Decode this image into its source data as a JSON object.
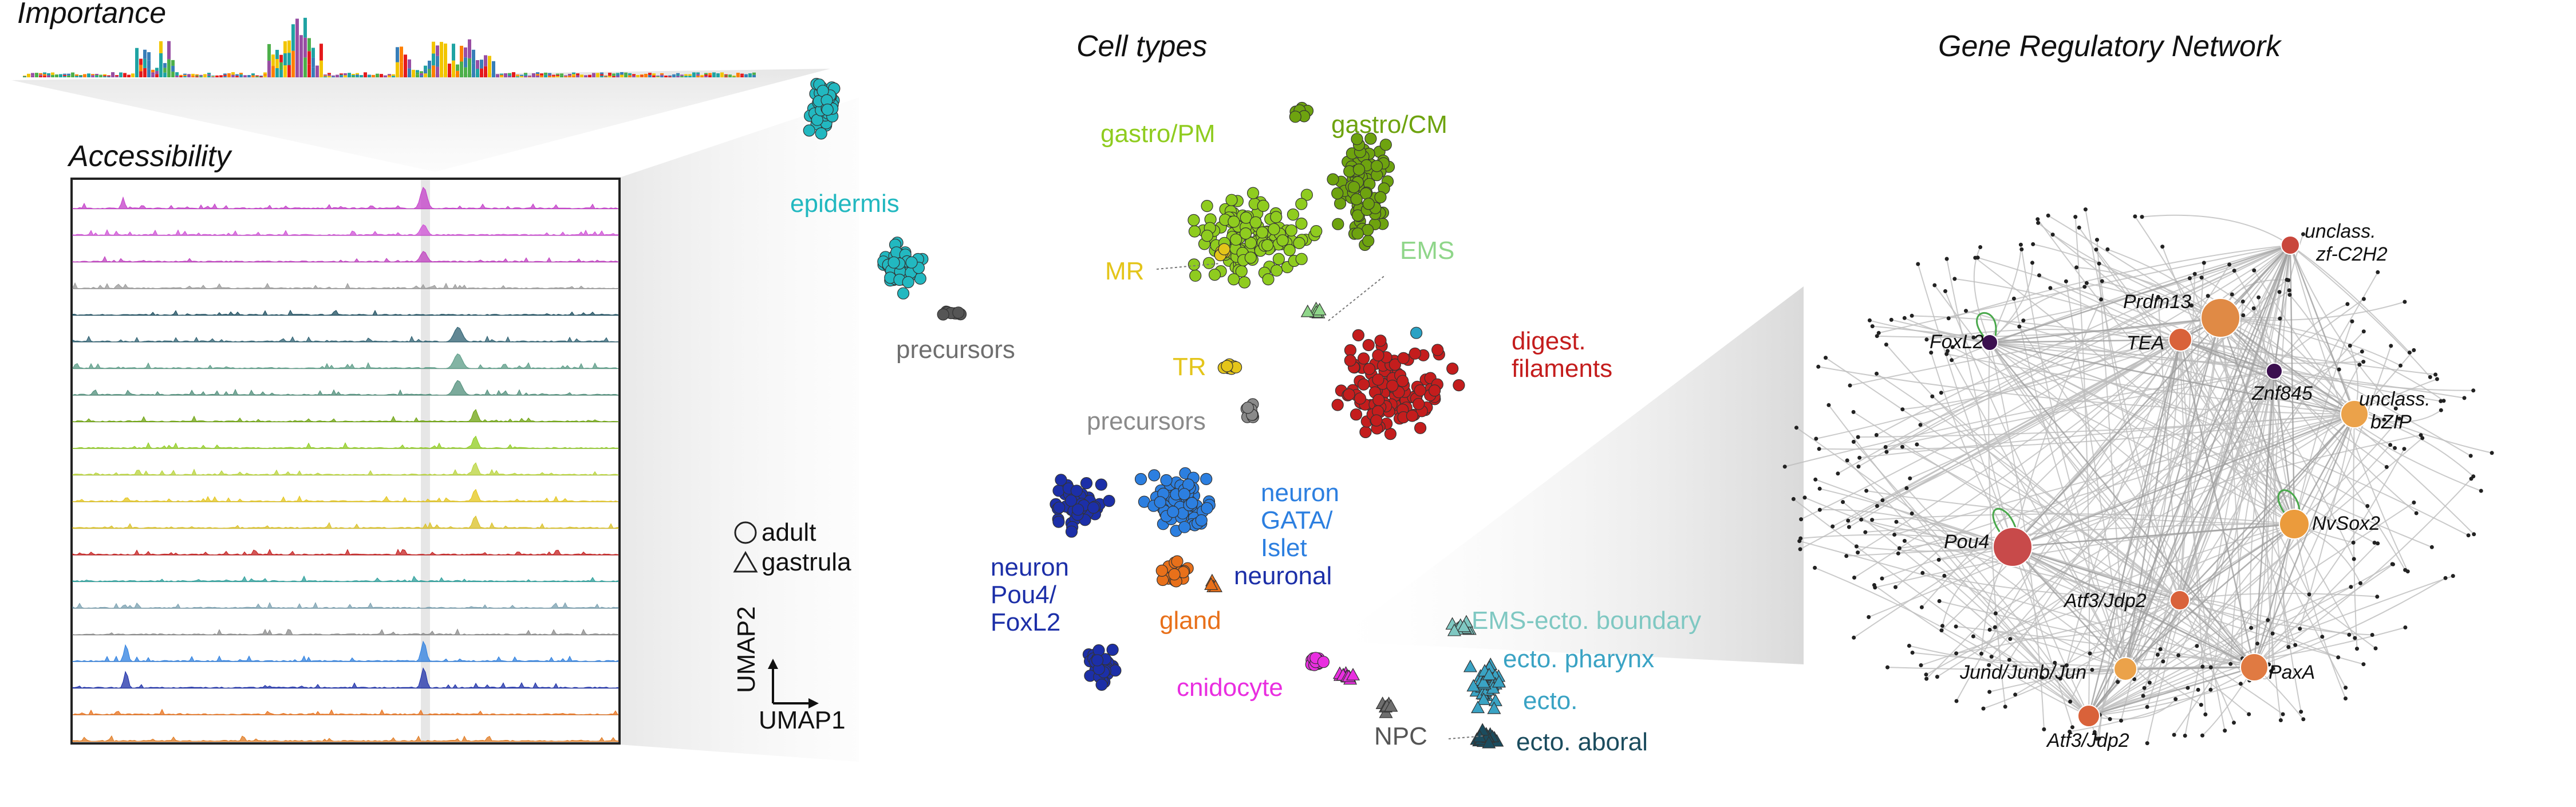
{
  "panels": {
    "importance": "Importance",
    "accessibility": "Accessibility",
    "cell_types": "Cell types",
    "grn": "Gene Regulatory Network"
  },
  "legend": {
    "adult": "adult",
    "gastrula": "gastrula"
  },
  "axes": {
    "umap1": "UMAP1",
    "umap2": "UMAP2"
  },
  "colors": {
    "magenta": "#d54ad8",
    "teal": "#22b8c0",
    "dark_teal": "#1b4c5e",
    "sea": "#5a9b86",
    "lime": "#8fcc1f",
    "olive": "#6ea30f",
    "yellow": "#e4c51a",
    "red": "#c41d1d",
    "grey": "#6e6e6e",
    "blue": "#2c7fe0",
    "navy": "#1c2fa8",
    "orange": "#e8701a",
    "pink": "#e92ee0",
    "light_teal": "#7fc8c2",
    "steel": "#3aa3c4"
  },
  "cell_type_labels": [
    {
      "key": "epidermis",
      "lines": [
        "epidermis"
      ],
      "color": "#22b8c0"
    },
    {
      "key": "precursors1",
      "lines": [
        "precursors"
      ],
      "color": "#6e6e6e"
    },
    {
      "key": "gastro_pm",
      "lines": [
        "gastro/PM"
      ],
      "color": "#8fcc1f"
    },
    {
      "key": "gastro_cm",
      "lines": [
        "gastro/CM"
      ],
      "color": "#6ea30f"
    },
    {
      "key": "mr",
      "lines": [
        "MR"
      ],
      "color": "#e4c51a"
    },
    {
      "key": "ems",
      "lines": [
        "EMS"
      ],
      "color": "#8fd68a"
    },
    {
      "key": "tr",
      "lines": [
        "TR"
      ],
      "color": "#e4c51a"
    },
    {
      "key": "digest",
      "lines": [
        "digest.",
        "filaments"
      ],
      "color": "#c41d1d"
    },
    {
      "key": "precursors2",
      "lines": [
        "precursors"
      ],
      "color": "#8a8a8a"
    },
    {
      "key": "neuron_gata",
      "lines": [
        "neuron",
        "GATA/",
        "Islet"
      ],
      "color": "#2c7fe0"
    },
    {
      "key": "neuronal",
      "lines": [
        "neuronal"
      ],
      "color": "#1c2fa8"
    },
    {
      "key": "neuron_pou4",
      "lines": [
        "neuron",
        "Pou4/",
        "FoxL2"
      ],
      "color": "#1c2fa8"
    },
    {
      "key": "gland",
      "lines": [
        "gland"
      ],
      "color": "#e8701a"
    },
    {
      "key": "ems_ecto",
      "lines": [
        "EMS-ecto. boundary"
      ],
      "color": "#7fc8c2"
    },
    {
      "key": "ecto_pharynx",
      "lines": [
        "ecto. pharynx"
      ],
      "color": "#3aa3c4"
    },
    {
      "key": "ecto",
      "lines": [
        "ecto."
      ],
      "color": "#3aa3c4"
    },
    {
      "key": "cnidocyte",
      "lines": [
        "cnidocyte"
      ],
      "color": "#e92ee0"
    },
    {
      "key": "npc",
      "lines": [
        "NPC"
      ],
      "color": "#555555"
    },
    {
      "key": "ecto_aboral",
      "lines": [
        "ecto. aboral"
      ],
      "color": "#1b4c5e"
    }
  ],
  "grn_genes": [
    {
      "key": "foxl2",
      "label": "FoxL2",
      "color": "#3b0f4f"
    },
    {
      "key": "prdm13",
      "label": "Prdm13",
      "color": "#e08a45"
    },
    {
      "key": "tea",
      "label": "TEA",
      "color": "#d9623a"
    },
    {
      "key": "znf845",
      "label": "Znf845",
      "color": "#3b0f4f"
    },
    {
      "key": "unclass_zf",
      "label1": "unclass.",
      "label2": "zf-C2H2",
      "color": "#c9473c"
    },
    {
      "key": "unclass_bzip",
      "label1": "unclass.",
      "label2": "bZIP",
      "color": "#eba24a"
    },
    {
      "key": "pou4",
      "label": "Pou4",
      "color": "#c84a4a"
    },
    {
      "key": "nvsox2",
      "label": "NvSox2",
      "color": "#eb9b3c"
    },
    {
      "key": "atf3a",
      "label": "Atf3/Jdp2",
      "color": "#d9623a"
    },
    {
      "key": "jund",
      "label": "Jund/Junb/Jun",
      "color": "#eba24a"
    },
    {
      "key": "paxa",
      "label": "PaxA",
      "color": "#e07a42"
    },
    {
      "key": "atf3b",
      "label": "Atf3/Jdp2",
      "color": "#d9623a"
    }
  ],
  "track_colors": [
    "#c33ec8",
    "#cf4fd6",
    "#bf3fbf",
    "#9a9a9a",
    "#1b4c5e",
    "#2c5f70",
    "#5a9b86",
    "#4f8e7a",
    "#6ea30f",
    "#8fcc1f",
    "#b8d33a",
    "#e4c51a",
    "#d9c025",
    "#c41d1d",
    "#2a9e9a",
    "#7aa0b0",
    "#8a8a8a",
    "#2c7fe0",
    "#1c2fa8",
    "#e8701a",
    "#e07a20"
  ]
}
